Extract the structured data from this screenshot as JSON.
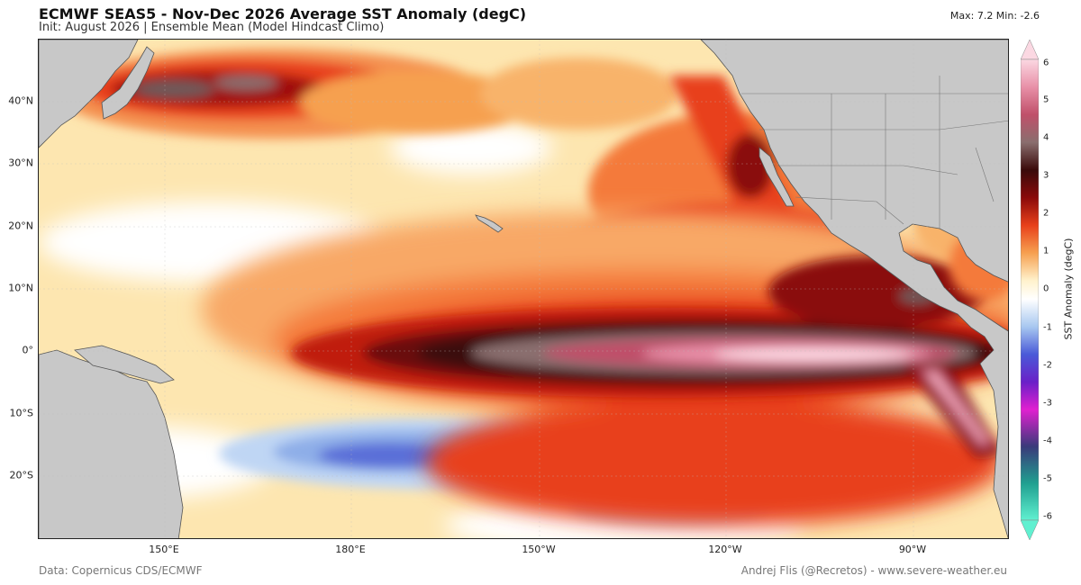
{
  "header": {
    "title": "ECMWF SEAS5 - Nov-Dec 2026 Average SST Anomaly (degC)",
    "subtitle": "Init: August 2026  |  Ensemble Mean (Model Hindcast Climo)",
    "maxmin": "Max: 7.2  Min: -2.6"
  },
  "map": {
    "lon_labels": [
      "150°E",
      "180°E",
      "150°W",
      "120°W",
      "90°W"
    ],
    "lat_labels": [
      "40°N",
      "30°N",
      "20°N",
      "10°N",
      "0°",
      "10°S",
      "20°S"
    ],
    "land_color": "#c8c8c8",
    "ocean_base_color": "#fff2cc"
  },
  "colorbar": {
    "label": "SST Anomaly (degC)",
    "ticks": [
      "6",
      "5",
      "4",
      "3",
      "2",
      "1",
      "0",
      "-1",
      "-2",
      "-3",
      "-4",
      "-5",
      "-6"
    ],
    "colors": [
      "#f7b6c8",
      "#c0506a",
      "#8a6e6e",
      "#3a0a0a",
      "#8a0a0a",
      "#e8401a",
      "#f6a050",
      "#ffffff",
      "#a8c8f0",
      "#4a5ad8",
      "#9a30d8",
      "#e020d0",
      "#3a3a7a",
      "#20a090",
      "#60f0d0"
    ]
  },
  "footer": {
    "source": "Data: Copernicus CDS/ECMWF",
    "credit": "Andrej Flis (@Recretos) - www.severe-weather.eu"
  }
}
